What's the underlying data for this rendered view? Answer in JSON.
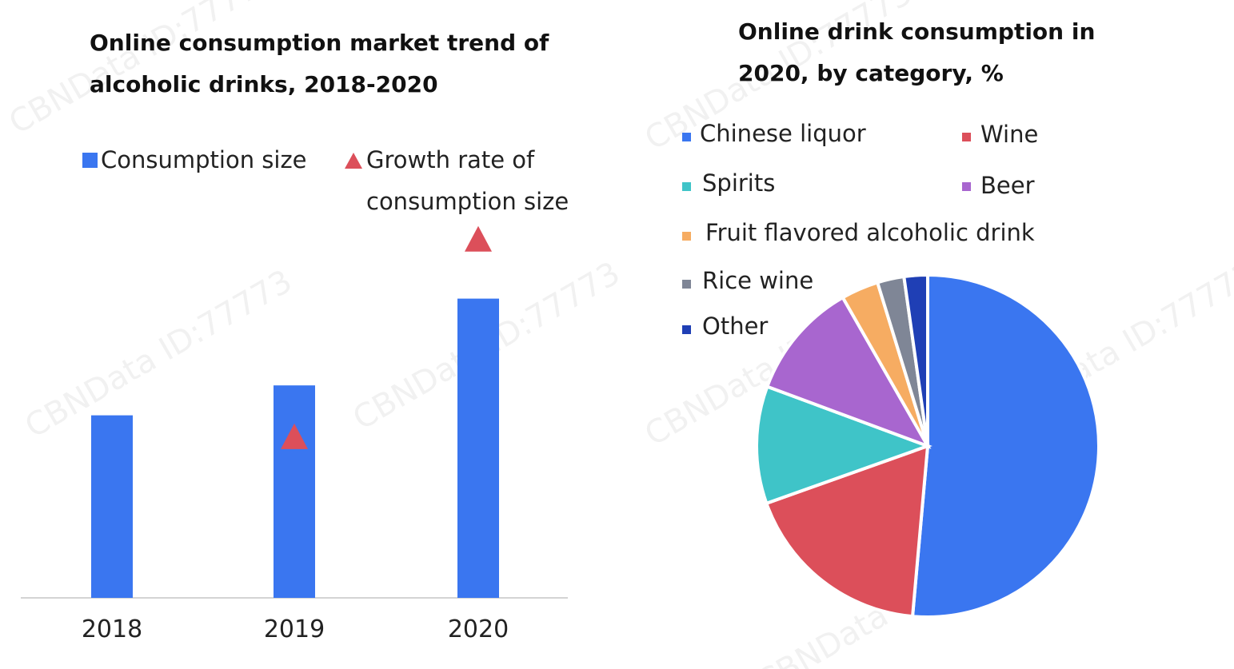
{
  "watermark": "CBNData ID:77773",
  "bar_legend": {
    "consumption_size": "Consumption size",
    "growth_rate": "Growth rate of consumption size"
  },
  "pie_legend_order": [
    "Chinese liquor",
    "Wine",
    "Spirits",
    "Beer",
    "Fruit flavored alcoholic drink",
    "Rice wine",
    "Other"
  ],
  "chart_data": [
    {
      "type": "bar",
      "title": "Online consumption market trend of alcoholic drinks, 2018-2020",
      "categories": [
        "2018",
        "2019",
        "2020"
      ],
      "series": [
        {
          "name": "Consumption size",
          "kind": "bar",
          "color": "#3a76f0",
          "values": [
            61,
            71,
            100
          ]
        },
        {
          "name": "Growth rate of consumption size",
          "kind": "marker",
          "marker": "triangle",
          "color": "#dc4f5a",
          "values": [
            null,
            54,
            120
          ]
        }
      ],
      "note": "no value axis printed; values are relative estimates",
      "ylim": [
        0,
        125
      ],
      "xlabel": "",
      "ylabel": "",
      "grid": false,
      "legend": "top"
    },
    {
      "type": "pie",
      "title": "Online drink consumption in 2020, by category, %",
      "slices": [
        {
          "label": "Chinese liquor",
          "value": 51,
          "color": "#3a76f0"
        },
        {
          "label": "Wine",
          "value": 18,
          "color": "#dc4f5a"
        },
        {
          "label": "Spirits",
          "value": 11,
          "color": "#3fc4c8"
        },
        {
          "label": "Beer",
          "value": 11,
          "color": "#a866cf"
        },
        {
          "label": "Fruit flavored alcoholic drink",
          "value": 3.5,
          "color": "#f6ac62"
        },
        {
          "label": "Rice wine",
          "value": 2.5,
          "color": "#7f8696"
        },
        {
          "label": "Other",
          "value": 2.2,
          "color": "#1f3fb5"
        }
      ],
      "legend": "top-left"
    }
  ]
}
